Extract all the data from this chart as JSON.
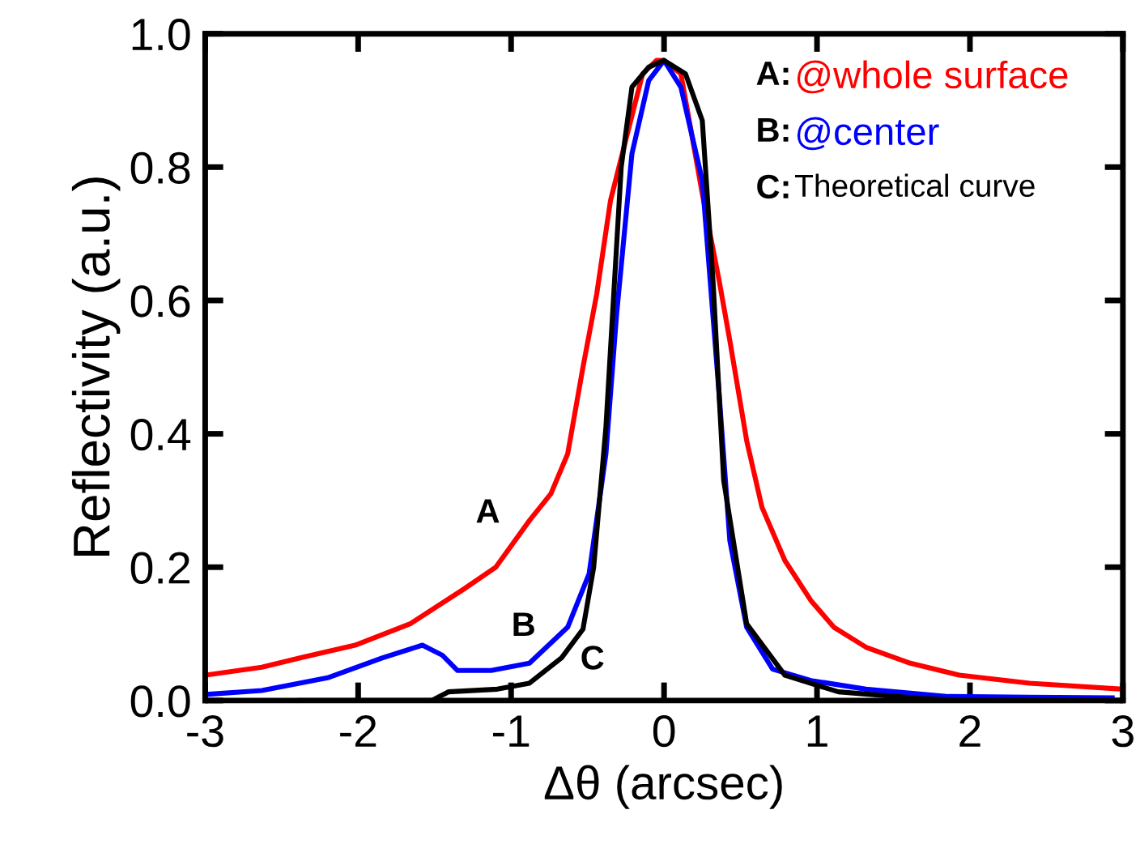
{
  "chart_data": {
    "type": "line",
    "xlabel": "Δθ (arcsec)",
    "ylabel": "Reflectivity (a.u.)",
    "xlim": [
      -3,
      3
    ],
    "xticks": [
      -3,
      -2,
      -1,
      0,
      1,
      2,
      3
    ],
    "ylim": [
      0,
      1
    ],
    "yticks": [
      {
        "value": 0,
        "label": "0.0"
      },
      {
        "value": 0.2,
        "label": "0.2"
      },
      {
        "value": 0.4,
        "label": "0.4"
      },
      {
        "value": 0.6,
        "label": "0.6"
      },
      {
        "value": 0.8,
        "label": "0.8"
      },
      {
        "value": 1,
        "label": "1.0"
      }
    ],
    "grid": false,
    "legend": "top right",
    "marker": "none",
    "line_style": "solid",
    "annotations": [
      "A",
      "B",
      "C"
    ],
    "series": [
      {
        "name": "A:@whole surface",
        "color": "#ff0000",
        "x": [
          -3,
          -2.63,
          -2.38,
          -2.02,
          -1.66,
          -1.31,
          -1.1,
          -0.88,
          -0.74,
          -0.63,
          -0.53,
          -0.44,
          -0.35,
          -0.24,
          -0.14,
          -0.05,
          0,
          0.11,
          0.25,
          0.36,
          0.43,
          0.54,
          0.64,
          0.79,
          0.96,
          1.11,
          1.32,
          1.61,
          1.93,
          2.39,
          3
        ],
        "values": [
          0.038,
          0.05,
          0.064,
          0.083,
          0.115,
          0.167,
          0.2,
          0.27,
          0.31,
          0.37,
          0.5,
          0.61,
          0.75,
          0.85,
          0.94,
          0.96,
          0.96,
          0.94,
          0.76,
          0.63,
          0.54,
          0.39,
          0.29,
          0.21,
          0.15,
          0.11,
          0.08,
          0.056,
          0.038,
          0.026,
          0.017
        ]
      },
      {
        "name": "B:@center",
        "color": "#0000ff",
        "x": [
          -3,
          -2.63,
          -2.2,
          -1.84,
          -1.58,
          -1.45,
          -1.35,
          -1.13,
          -0.88,
          -0.63,
          -0.49,
          -0.38,
          -0.31,
          -0.21,
          -0.1,
          0,
          0.11,
          0.25,
          0.36,
          0.43,
          0.54,
          0.71,
          0.96,
          1.32,
          1.86,
          2.93
        ],
        "values": [
          0.009,
          0.015,
          0.034,
          0.064,
          0.083,
          0.068,
          0.045,
          0.045,
          0.056,
          0.11,
          0.19,
          0.37,
          0.58,
          0.82,
          0.93,
          0.96,
          0.92,
          0.78,
          0.46,
          0.24,
          0.11,
          0.047,
          0.03,
          0.017,
          0.006,
          0.004
        ]
      },
      {
        "name": "C:Theoretical curve",
        "color": "#000000",
        "x": [
          -2.38,
          -1.52,
          -1.41,
          -1.09,
          -0.88,
          -0.67,
          -0.53,
          -0.46,
          -0.38,
          -0.28,
          -0.21,
          -0.1,
          0,
          0.14,
          0.25,
          0.32,
          0.39,
          0.54,
          0.79,
          1.14,
          1.68,
          2.0
        ],
        "values": [
          0,
          0,
          0.013,
          0.017,
          0.026,
          0.064,
          0.107,
          0.2,
          0.41,
          0.8,
          0.92,
          0.95,
          0.96,
          0.94,
          0.87,
          0.63,
          0.33,
          0.115,
          0.038,
          0.013,
          0.003,
          0
        ]
      }
    ]
  }
}
